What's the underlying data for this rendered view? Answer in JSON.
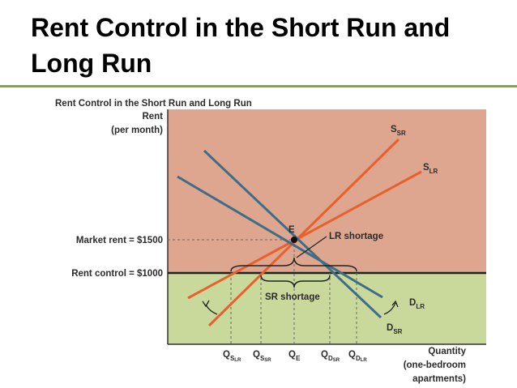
{
  "header": {
    "title": "Rent Control in the Short Run and Long Run"
  },
  "diagram": {
    "title": "Rent Control in the Short Run and Long Run",
    "y_axis_label": [
      "Rent",
      "(per month)"
    ],
    "x_axis_label": [
      "Quantity",
      "(one-bedroom",
      "apartments)"
    ],
    "market_rent_label": "Market rent = $1500",
    "rent_control_label": "Rent control = $1000",
    "equilibrium_label": "E",
    "curves": [
      {
        "label": "S",
        "sub": "SR"
      },
      {
        "label": "S",
        "sub": "LR"
      },
      {
        "label": "D",
        "sub": "LR"
      },
      {
        "label": "D",
        "sub": "SR"
      }
    ],
    "quantities": [
      {
        "label": "Q",
        "sub": "S",
        "subsub": "LR"
      },
      {
        "label": "Q",
        "sub": "S",
        "subsub": "SR"
      },
      {
        "label": "Q",
        "sub": "E"
      },
      {
        "label": "Q",
        "sub": "D",
        "subsub": "SR"
      },
      {
        "label": "Q",
        "sub": "D",
        "subsub": "LR"
      }
    ],
    "annotations": [
      "LR shortage",
      "SR shortage"
    ]
  }
}
